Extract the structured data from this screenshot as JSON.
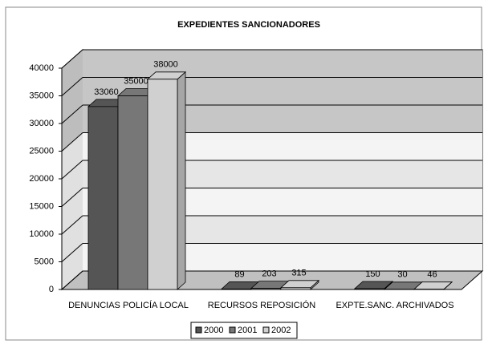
{
  "chart_data": {
    "type": "bar3d",
    "title": "EXPEDIENTES SANCIONADORES",
    "categories": [
      "DENUNCIAS POLICÍA LOCAL",
      "RECURSOS REPOSICIÓN",
      "EXPTE.SANC. ARCHIVADOS"
    ],
    "series": [
      {
        "name": "2000",
        "color": "#555555",
        "values": [
          33060,
          89,
          150
        ]
      },
      {
        "name": "2001",
        "color": "#777777",
        "values": [
          35000,
          203,
          30
        ]
      },
      {
        "name": "2002",
        "color": "#d0d0d0",
        "values": [
          38000,
          315,
          46
        ]
      }
    ],
    "ylim": [
      0,
      40000
    ],
    "yticks": [
      0,
      5000,
      10000,
      15000,
      20000,
      25000,
      30000,
      35000,
      40000
    ],
    "grid": true,
    "legend": "bottom"
  }
}
